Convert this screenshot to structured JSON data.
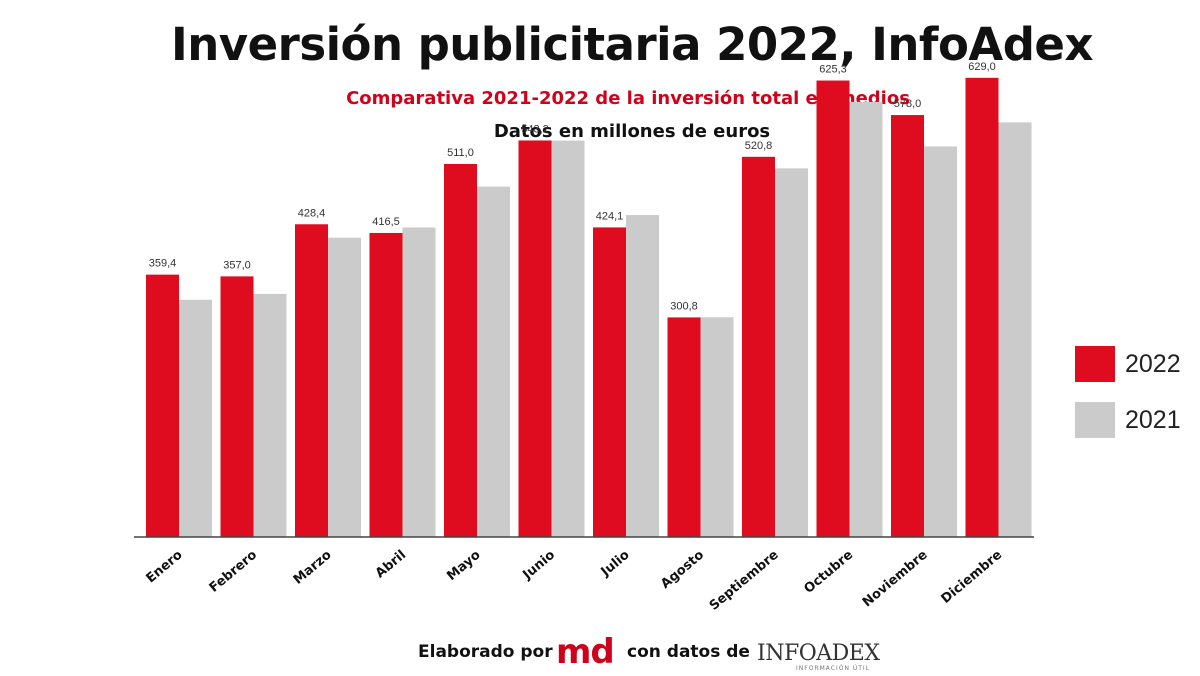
{
  "header": {
    "title": "Inversión publicitaria 2022, InfoAdex",
    "subtitle": "Comparativa 2021-2022 de la inversión total en medios",
    "units": "Datos en millones de euros"
  },
  "colors": {
    "series_2022": "#df0b1e",
    "series_2021": "#cbcbcb",
    "axis": "#444444"
  },
  "chart_data": {
    "type": "bar",
    "categories": [
      "Enero",
      "Febrero",
      "Marzo",
      "Abril",
      "Mayo",
      "Junio",
      "Julio",
      "Agosto",
      "Septiembre",
      "Octubre",
      "Noviembre",
      "Diciembre"
    ],
    "series": [
      {
        "name": "2022",
        "values": [
          359.4,
          357.0,
          428.4,
          416.5,
          511.0,
          543.2,
          424.1,
          300.8,
          520.8,
          625.3,
          578.0,
          629.0
        ],
        "labels": [
          "359,4",
          "357,0",
          "428,4",
          "416,5",
          "511,0",
          "543,2",
          "424,1",
          "300,8",
          "520,8",
          "625,3",
          "578,0",
          "629,0"
        ]
      },
      {
        "name": "2021",
        "values": [
          325,
          333,
          410,
          424,
          480,
          543,
          441,
          301,
          505,
          596,
          535,
          568
        ]
      }
    ],
    "ylim": [
      0,
      700
    ],
    "legend": "right"
  },
  "footer": {
    "prefix": "Elaborado por",
    "logo_md": "md",
    "middle": "con datos de",
    "logo_infoadex": "INFOADEX",
    "logo_infoadex_tag": "INFORMACIÓN ÚTIL"
  }
}
